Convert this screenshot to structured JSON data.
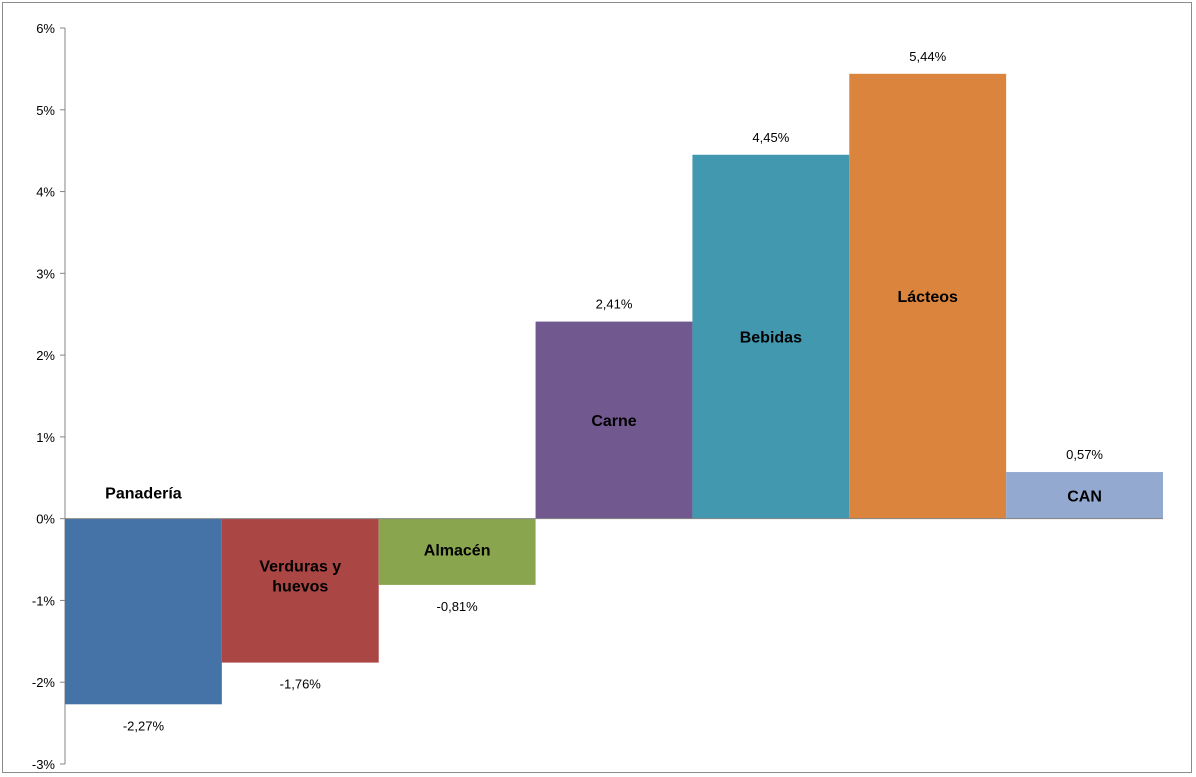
{
  "chart_data": {
    "type": "bar",
    "categories": [
      {
        "lines": [
          "Panadería"
        ]
      },
      {
        "lines": [
          "Verduras y",
          "huevos"
        ]
      },
      {
        "lines": [
          "Almacén"
        ]
      },
      {
        "lines": [
          "Carne"
        ]
      },
      {
        "lines": [
          "Bebidas"
        ]
      },
      {
        "lines": [
          "Lácteos"
        ]
      },
      {
        "lines": [
          "CAN"
        ]
      }
    ],
    "values": [
      -2.27,
      -1.76,
      -0.81,
      2.41,
      4.45,
      5.44,
      0.57
    ],
    "value_labels": [
      "-2,27%",
      "-1,76%",
      "-0,81%",
      "2,41%",
      "4,45%",
      "5,44%",
      "0,57%"
    ],
    "colors": [
      "#4572a7",
      "#aa4643",
      "#89a54e",
      "#71588f",
      "#4198af",
      "#db843d",
      "#93a9cf"
    ],
    "ylim": [
      -3,
      6
    ],
    "yticks": [
      -3,
      -2,
      -1,
      0,
      1,
      2,
      3,
      4,
      5,
      6
    ],
    "ytick_labels": [
      "-3%",
      "-2%",
      "-1%",
      "0%",
      "1%",
      "2%",
      "3%",
      "4%",
      "5%",
      "6%"
    ],
    "grid": false,
    "legend": "none",
    "title": "",
    "xlabel": "",
    "ylabel": ""
  }
}
